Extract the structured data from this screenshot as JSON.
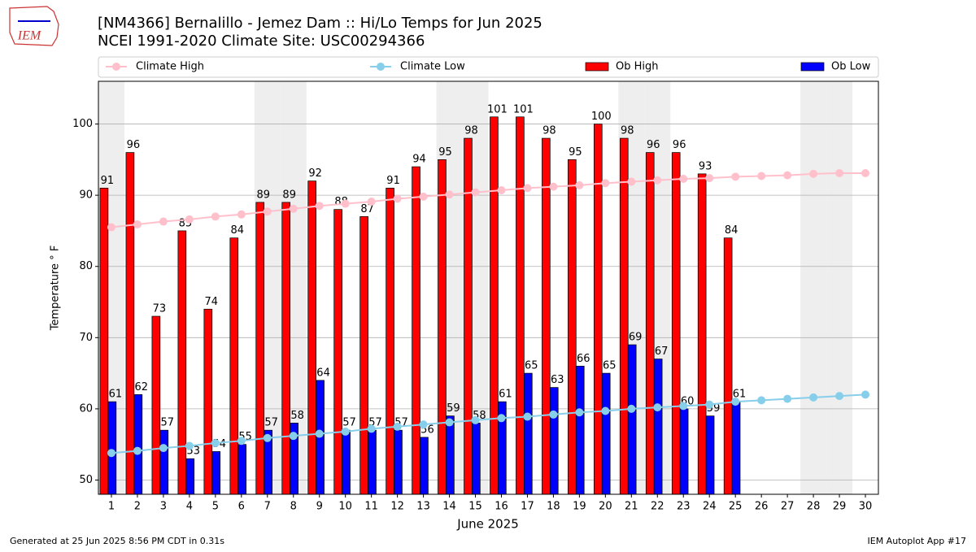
{
  "chart_data": {
    "type": "bar",
    "logo_text": "IEM",
    "title": "[NM4366] Bernalillo - Jemez Dam :: Hi/Lo Temps for Jun 2025",
    "subtitle": "NCEI 1991-2020 Climate Site: USC00294366",
    "x_label": "June 2025",
    "y_label": "Temperature ° F",
    "footer_left": "Generated at 25 Jun 2025 8:56 PM CDT in 0.31s",
    "footer_right": "IEM Autoplot App #17",
    "x": [
      1,
      2,
      3,
      4,
      5,
      6,
      7,
      8,
      9,
      10,
      11,
      12,
      13,
      14,
      15,
      16,
      17,
      18,
      19,
      20,
      21,
      22,
      23,
      24,
      25,
      26,
      27,
      28,
      29,
      30
    ],
    "xlim": [
      0.5,
      30.5
    ],
    "xticks": [
      1,
      2,
      3,
      4,
      5,
      6,
      7,
      8,
      9,
      10,
      11,
      12,
      13,
      14,
      15,
      16,
      17,
      18,
      19,
      20,
      21,
      22,
      23,
      24,
      25,
      26,
      27,
      28,
      29,
      30
    ],
    "ylim": [
      48,
      106
    ],
    "yticks": [
      50,
      60,
      70,
      80,
      90,
      100
    ],
    "grid": true,
    "shaded_days": [
      1,
      7,
      8,
      14,
      15,
      21,
      22,
      28,
      29
    ],
    "shade_color": "#eeeeee",
    "series": [
      {
        "name": "Climate High",
        "type": "line",
        "color": "#ffc0cb",
        "values": [
          85.5,
          85.9,
          86.3,
          86.6,
          87.0,
          87.3,
          87.7,
          88.1,
          88.5,
          88.8,
          89.1,
          89.5,
          89.8,
          90.1,
          90.4,
          90.7,
          91.0,
          91.2,
          91.4,
          91.7,
          91.9,
          92.1,
          92.3,
          92.4,
          92.6,
          92.7,
          92.8,
          93.0,
          93.1,
          93.1
        ]
      },
      {
        "name": "Climate Low",
        "type": "line",
        "color": "#87ceeb",
        "values": [
          53.8,
          54.1,
          54.5,
          54.8,
          55.2,
          55.5,
          55.9,
          56.2,
          56.5,
          56.8,
          57.2,
          57.5,
          57.8,
          58.1,
          58.4,
          58.7,
          58.9,
          59.2,
          59.5,
          59.7,
          60.0,
          60.2,
          60.4,
          60.6,
          61.0,
          61.2,
          61.4,
          61.6,
          61.8,
          62.0
        ]
      },
      {
        "name": "Ob High",
        "type": "bar",
        "color": "#ff0000",
        "values": [
          91,
          96,
          73,
          85,
          74,
          84,
          89,
          89,
          92,
          88,
          87,
          91,
          94,
          95,
          98,
          101,
          101,
          98,
          95,
          100,
          98,
          96,
          96,
          93,
          84,
          null,
          null,
          null,
          null,
          null
        ]
      },
      {
        "name": "Ob Low",
        "type": "bar",
        "color": "#0000ff",
        "values": [
          61,
          62,
          57,
          53,
          54,
          55,
          57,
          58,
          64,
          57,
          57,
          57,
          56,
          59,
          58,
          61,
          65,
          63,
          66,
          65,
          69,
          67,
          60,
          59,
          61,
          null,
          null,
          null,
          null,
          null
        ]
      }
    ]
  }
}
